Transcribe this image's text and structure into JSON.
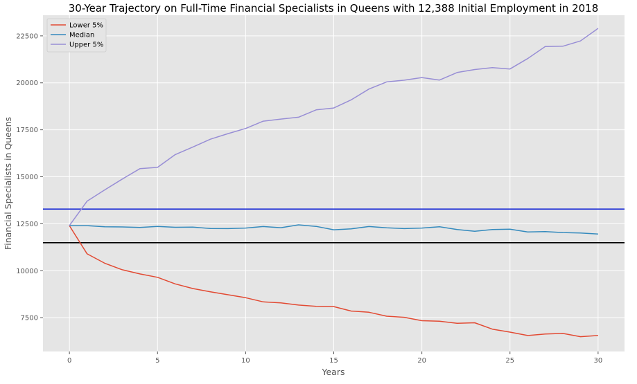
{
  "chart_data": {
    "type": "line",
    "title": "30-Year Trajectory on Full-Time Financial Specialists in Queens with 12,388 Initial Employment in 2018",
    "xlabel": "Years",
    "ylabel": "Financial Specialists in Queens",
    "xlim": [
      -1.5,
      31.5
    ],
    "ylim": [
      5700,
      23600
    ],
    "x_ticks": [
      0,
      5,
      10,
      15,
      20,
      25,
      30
    ],
    "y_ticks": [
      7500,
      10000,
      12500,
      15000,
      17500,
      20000,
      22500
    ],
    "grid": true,
    "legend_position": "top-left",
    "x": [
      0,
      1,
      2,
      3,
      4,
      5,
      6,
      7,
      8,
      9,
      10,
      11,
      12,
      13,
      14,
      15,
      16,
      17,
      18,
      19,
      20,
      21,
      22,
      23,
      24,
      25,
      26,
      27,
      28,
      29,
      30
    ],
    "series": [
      {
        "name": "Lower 5%",
        "color": "#E24A33",
        "values": [
          12400,
          10900,
          10400,
          10050,
          9830,
          9650,
          9300,
          9050,
          8880,
          8720,
          8560,
          8340,
          8290,
          8170,
          8100,
          8090,
          7850,
          7790,
          7580,
          7520,
          7340,
          7310,
          7200,
          7230,
          6890,
          6730,
          6550,
          6630,
          6660,
          6490,
          6550
        ]
      },
      {
        "name": "Median",
        "color": "#348ABD",
        "values": [
          12400,
          12400,
          12340,
          12330,
          12300,
          12360,
          12310,
          12320,
          12250,
          12240,
          12270,
          12350,
          12290,
          12440,
          12360,
          12180,
          12230,
          12350,
          12280,
          12240,
          12270,
          12340,
          12190,
          12100,
          12190,
          12210,
          12060,
          12080,
          12030,
          12010,
          11950
        ]
      },
      {
        "name": "Upper 5%",
        "color": "#988ED5",
        "values": [
          12400,
          13700,
          14300,
          14880,
          15430,
          15500,
          16180,
          16580,
          17000,
          17300,
          17570,
          17960,
          18070,
          18170,
          18560,
          18660,
          19100,
          19670,
          20050,
          20140,
          20280,
          20150,
          20550,
          20710,
          20810,
          20740,
          21290,
          21930,
          21950,
          22230,
          22900
        ]
      }
    ],
    "reference_lines": [
      {
        "y": 13280,
        "color": "#1f2fd6"
      },
      {
        "y": 11490,
        "color": "#000000"
      }
    ]
  }
}
